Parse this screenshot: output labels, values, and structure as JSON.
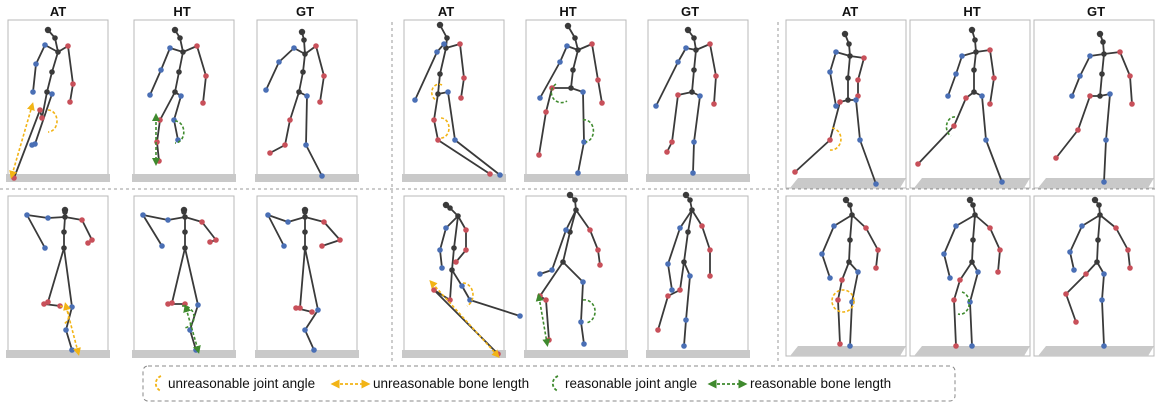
{
  "headers": {
    "g1": [
      "AT",
      "HT",
      "GT"
    ],
    "g2": [
      "AT",
      "HT",
      "GT"
    ],
    "g3": [
      "AT",
      "HT",
      "GT"
    ]
  },
  "legend": {
    "unreasonable_angle": "unreasonable joint angle",
    "unreasonable_length": "unreasonable bone length",
    "reasonable_angle": "reasonable joint angle",
    "reasonable_length": "reasonable bone length"
  },
  "colors": {
    "bone": "#3a3a3a",
    "joint_left": "#c8505a",
    "joint_right": "#4a6fb5",
    "joint_center": "#3a3a3a",
    "unreasonable": "#f2b416",
    "reasonable": "#3f8a2e",
    "floor": "#c9c9c9"
  },
  "icons": {
    "unreasonable_angle": "yellow-dashed-arc-icon",
    "unreasonable_length": "yellow-double-arrow-icon",
    "reasonable_angle": "green-dashed-arc-icon",
    "reasonable_length": "green-double-arrow-icon"
  }
}
